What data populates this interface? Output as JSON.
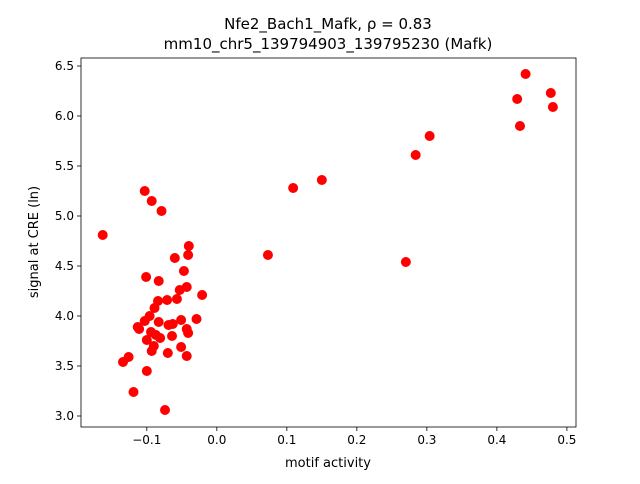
{
  "chart_data": {
    "type": "scatter",
    "title_line1": "Nfe2_Bach1_Mafk, ρ = 0.83",
    "title_line2": "mm10_chr5_139794903_139795230 (Mafk)",
    "xlabel": "motif activity",
    "ylabel": "signal at CRE (ln)",
    "xlim": [
      -0.194,
      0.513
    ],
    "ylim": [
      2.89,
      6.58
    ],
    "xticks": [
      -0.1,
      0.0,
      0.1,
      0.2,
      0.3,
      0.4,
      0.5
    ],
    "xtick_labels": [
      "−0.1",
      "0.0",
      "0.1",
      "0.2",
      "0.3",
      "0.4",
      "0.5"
    ],
    "yticks": [
      3.0,
      3.5,
      4.0,
      4.5,
      5.0,
      5.5,
      6.0,
      6.5
    ],
    "ytick_labels": [
      "3.0",
      "3.5",
      "4.0",
      "4.5",
      "5.0",
      "5.5",
      "6.0",
      "6.5"
    ],
    "grid": false,
    "marker_color": "#ff0000",
    "points": [
      [
        -0.103,
        5.25
      ],
      [
        -0.093,
        5.15
      ],
      [
        -0.079,
        5.05
      ],
      [
        -0.163,
        4.81
      ],
      [
        -0.04,
        4.7
      ],
      [
        -0.041,
        4.61
      ],
      [
        -0.06,
        4.58
      ],
      [
        -0.047,
        4.45
      ],
      [
        -0.101,
        4.39
      ],
      [
        -0.083,
        4.35
      ],
      [
        -0.021,
        4.21
      ],
      [
        -0.043,
        4.29
      ],
      [
        -0.053,
        4.26
      ],
      [
        -0.057,
        4.17
      ],
      [
        -0.071,
        4.16
      ],
      [
        -0.084,
        4.15
      ],
      [
        -0.089,
        4.08
      ],
      [
        -0.096,
        4.0
      ],
      [
        -0.103,
        3.95
      ],
      [
        -0.113,
        3.89
      ],
      [
        -0.111,
        3.87
      ],
      [
        -0.083,
        3.94
      ],
      [
        -0.069,
        3.91
      ],
      [
        -0.063,
        3.92
      ],
      [
        -0.051,
        3.96
      ],
      [
        -0.029,
        3.97
      ],
      [
        -0.043,
        3.87
      ],
      [
        -0.041,
        3.83
      ],
      [
        -0.094,
        3.84
      ],
      [
        -0.081,
        3.78
      ],
      [
        -0.087,
        3.81
      ],
      [
        -0.064,
        3.8
      ],
      [
        -0.1,
        3.76
      ],
      [
        -0.09,
        3.7
      ],
      [
        -0.093,
        3.65
      ],
      [
        -0.07,
        3.63
      ],
      [
        -0.051,
        3.69
      ],
      [
        -0.043,
        3.6
      ],
      [
        -0.126,
        3.59
      ],
      [
        -0.134,
        3.54
      ],
      [
        -0.1,
        3.45
      ],
      [
        -0.119,
        3.24
      ],
      [
        -0.074,
        3.06
      ],
      [
        0.073,
        4.61
      ],
      [
        0.109,
        5.28
      ],
      [
        0.15,
        5.36
      ],
      [
        0.27,
        4.54
      ],
      [
        0.284,
        5.61
      ],
      [
        0.304,
        5.8
      ],
      [
        0.429,
        6.17
      ],
      [
        0.433,
        5.9
      ],
      [
        0.441,
        6.42
      ],
      [
        0.477,
        6.23
      ],
      [
        0.48,
        6.09
      ]
    ]
  }
}
